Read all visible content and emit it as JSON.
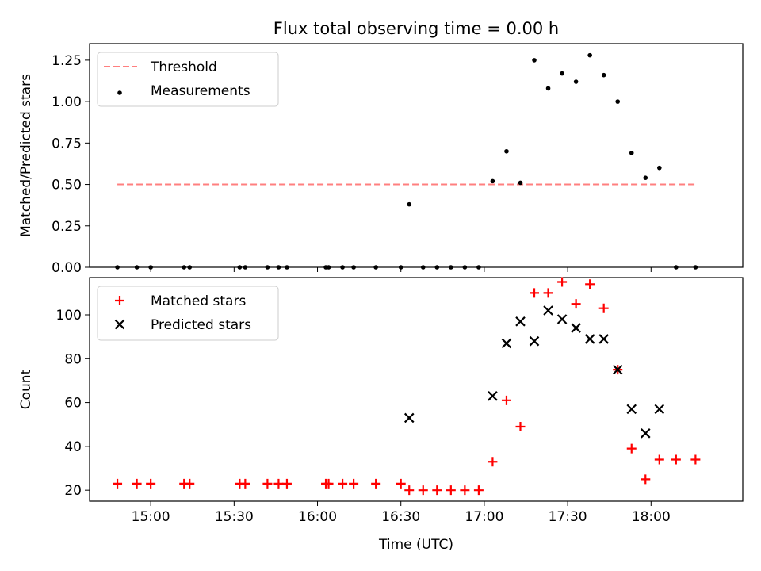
{
  "title": "Flux total observing time = 0.00 h",
  "chart_data": [
    {
      "type": "scatter",
      "panel": "top",
      "ylabel": "Matched/Predicted stars",
      "xlim": [
        "14:38",
        "18:33"
      ],
      "ylim": [
        0,
        1.35
      ],
      "yticks": [
        "0.00",
        "0.25",
        "0.50",
        "0.75",
        "1.00",
        "1.25"
      ],
      "yticks_values": [
        0,
        0.25,
        0.5,
        0.75,
        1.0,
        1.25
      ],
      "legend_position": "top-left",
      "series": [
        {
          "name": "Threshold",
          "kind": "line",
          "style": "dashed",
          "color": "#ff7f7f",
          "x": [
            "14:48",
            "18:16"
          ],
          "y": [
            0.5,
            0.5
          ]
        },
        {
          "name": "Measurements",
          "kind": "points",
          "marker": "dot",
          "color": "#000000",
          "x": [
            "14:48",
            "14:55",
            "15:00",
            "15:12",
            "15:14",
            "15:32",
            "15:34",
            "15:42",
            "15:46",
            "15:49",
            "16:03",
            "16:04",
            "16:09",
            "16:13",
            "16:21",
            "16:30",
            "16:33",
            "16:38",
            "16:43",
            "16:48",
            "16:53",
            "16:58",
            "17:03",
            "17:08",
            "17:13",
            "17:18",
            "17:23",
            "17:28",
            "17:33",
            "17:38",
            "17:43",
            "17:48",
            "17:53",
            "17:58",
            "18:03",
            "18:09",
            "18:16"
          ],
          "y": [
            0,
            0,
            0,
            0,
            0,
            0,
            0,
            0,
            0,
            0,
            0,
            0,
            0,
            0,
            0,
            0,
            0.38,
            0,
            0,
            0,
            0,
            0,
            0.52,
            0.7,
            0.51,
            1.25,
            1.08,
            1.17,
            1.12,
            1.28,
            1.16,
            1.0,
            0.69,
            0.54,
            0.6,
            0,
            0
          ]
        }
      ]
    },
    {
      "type": "scatter",
      "panel": "bottom",
      "xlabel": "Time (UTC)",
      "ylabel": "Count",
      "xlim": [
        "14:38",
        "18:33"
      ],
      "ylim": [
        15,
        117
      ],
      "xticks": [
        "15:00",
        "15:30",
        "16:00",
        "16:30",
        "17:00",
        "17:30",
        "18:00"
      ],
      "yticks": [
        "20",
        "40",
        "60",
        "80",
        "100"
      ],
      "yticks_values": [
        20,
        40,
        60,
        80,
        100
      ],
      "legend_position": "top-left",
      "series": [
        {
          "name": "Matched stars",
          "marker": "plus",
          "color": "#ff0000",
          "x": [
            "14:48",
            "14:55",
            "15:00",
            "15:12",
            "15:14",
            "15:32",
            "15:34",
            "15:42",
            "15:46",
            "15:49",
            "16:03",
            "16:04",
            "16:09",
            "16:13",
            "16:21",
            "16:30",
            "16:33",
            "16:38",
            "16:43",
            "16:48",
            "16:53",
            "16:58",
            "17:03",
            "17:08",
            "17:13",
            "17:18",
            "17:23",
            "17:28",
            "17:33",
            "17:38",
            "17:43",
            "17:48",
            "17:53",
            "17:58",
            "18:03",
            "18:09",
            "18:16"
          ],
          "y": [
            23,
            23,
            23,
            23,
            23,
            23,
            23,
            23,
            23,
            23,
            23,
            23,
            23,
            23,
            23,
            23,
            20,
            20,
            20,
            20,
            20,
            20,
            33,
            61,
            49,
            110,
            110,
            115,
            105,
            114,
            103,
            75,
            39,
            25,
            34,
            34,
            34
          ]
        },
        {
          "name": "Predicted stars",
          "marker": "x",
          "color": "#000000",
          "x": [
            "16:33",
            "17:03",
            "17:08",
            "17:13",
            "17:18",
            "17:23",
            "17:28",
            "17:33",
            "17:38",
            "17:43",
            "17:48",
            "17:53",
            "17:58",
            "18:03"
          ],
          "y": [
            53,
            63,
            87,
            97,
            88,
            102,
            98,
            94,
            89,
            89,
            75,
            57,
            46,
            57
          ]
        }
      ]
    }
  ]
}
